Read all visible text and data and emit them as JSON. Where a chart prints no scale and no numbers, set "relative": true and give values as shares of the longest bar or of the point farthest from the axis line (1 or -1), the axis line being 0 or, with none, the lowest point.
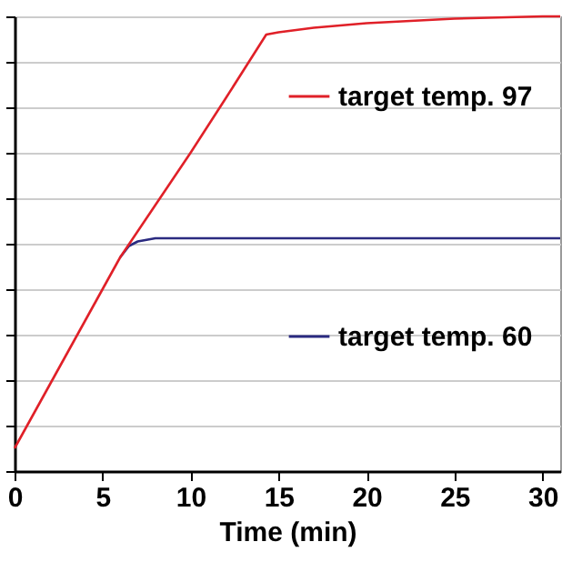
{
  "chart_data": {
    "type": "line",
    "xlabel": "Time (min)",
    "relative": true,
    "xlim": [
      0,
      31
    ],
    "xticks": [
      0,
      5,
      10,
      15,
      20,
      25,
      30
    ],
    "grid": "y",
    "legend": "top right",
    "series": [
      {
        "name": "target temp. 97",
        "color": "#e02028",
        "x": [
          0,
          2,
          4,
          6,
          8,
          10,
          12,
          14.3,
          15,
          17,
          20,
          25,
          30,
          31
        ],
        "values": [
          0.05,
          0.19,
          0.33,
          0.47,
          0.585,
          0.7,
          0.82,
          0.96,
          0.965,
          0.975,
          0.985,
          0.995,
          1.0,
          1.0
        ]
      },
      {
        "name": "target temp. 60",
        "color": "#2a2a80",
        "x": [
          6,
          6.5,
          7,
          8,
          10,
          15,
          20,
          25,
          30,
          31
        ],
        "values": [
          0.47,
          0.495,
          0.505,
          0.512,
          0.512,
          0.512,
          0.512,
          0.512,
          0.512,
          0.512
        ]
      }
    ]
  }
}
